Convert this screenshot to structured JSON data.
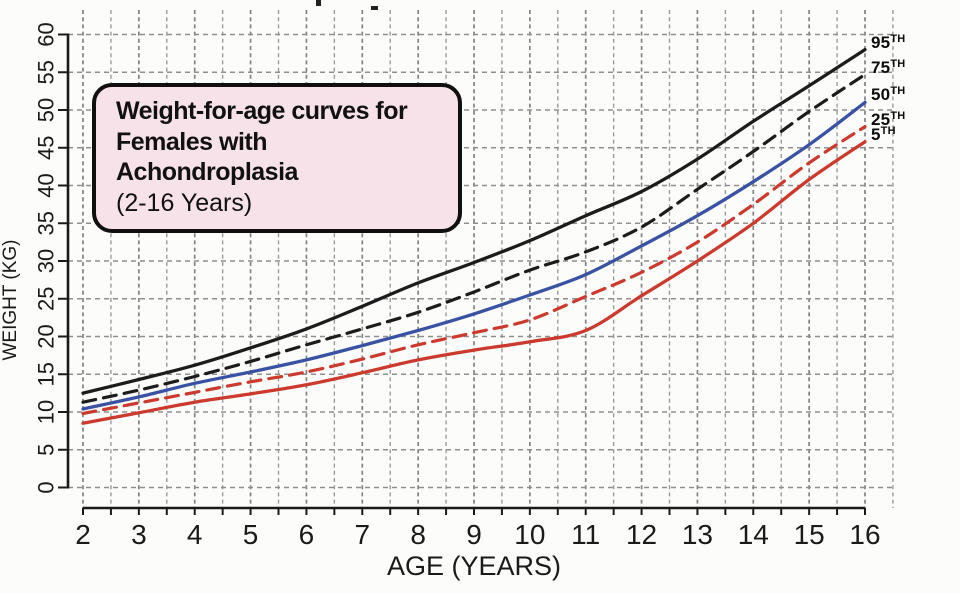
{
  "title_box": {
    "line1": "Weight-for-age curves for",
    "line2": "Females with Achondroplasia",
    "line3": "(2-16 Years)",
    "background": "#f8e2ea",
    "border_color": "#101010"
  },
  "chart_data": {
    "type": "line",
    "title": "Weight-for-age curves for Females with Achondroplasia (2-16 Years)",
    "xlabel": "AGE (YEARS)",
    "ylabel": "WEIGHT (KG)",
    "xlim": [
      2,
      16
    ],
    "ylim": [
      0,
      60
    ],
    "x_ticks": [
      2,
      3,
      4,
      5,
      6,
      7,
      8,
      9,
      10,
      11,
      12,
      13,
      14,
      15,
      16
    ],
    "y_ticks": [
      0,
      5,
      10,
      15,
      20,
      25,
      30,
      35,
      40,
      45,
      50,
      55,
      60
    ],
    "grid": {
      "on": true,
      "x_step": 0.5,
      "y_step": 5,
      "style": "dashed",
      "color": "#9b9b9b"
    },
    "legend_position": "curve-end-labels-right",
    "x": [
      2,
      3,
      4,
      5,
      6,
      7,
      8,
      9,
      10,
      11,
      12,
      13,
      14,
      15,
      16
    ],
    "series": [
      {
        "name": "95th percentile",
        "label": "95",
        "suffix": "TH",
        "color": "#1c1c1c",
        "dash": "solid",
        "values": [
          12.5,
          14.3,
          16.2,
          18.5,
          21.0,
          24.0,
          27.1,
          29.8,
          32.7,
          36.0,
          39.2,
          43.5,
          48.5,
          53.2,
          58.0
        ]
      },
      {
        "name": "75th percentile",
        "label": "75",
        "suffix": "TH",
        "color": "#1c1c1c",
        "dash": "dashed",
        "values": [
          11.3,
          12.9,
          14.7,
          16.7,
          18.9,
          21.0,
          23.2,
          25.9,
          28.8,
          31.2,
          34.5,
          39.5,
          44.5,
          49.8,
          54.7
        ]
      },
      {
        "name": "50th percentile",
        "label": "50",
        "suffix": "TH",
        "color": "#3a52a4",
        "dash": "solid",
        "values": [
          10.4,
          12.0,
          13.8,
          15.3,
          16.9,
          18.8,
          20.8,
          23.0,
          25.5,
          28.2,
          32.0,
          36.0,
          40.5,
          45.4,
          51.0
        ]
      },
      {
        "name": "25th percentile",
        "label": "25",
        "suffix": "TH",
        "color": "#cc3a2e",
        "dash": "dashed",
        "values": [
          9.8,
          11.2,
          12.6,
          14.0,
          15.3,
          17.0,
          18.9,
          20.5,
          22.2,
          25.3,
          28.5,
          32.5,
          37.5,
          43.0,
          47.8
        ]
      },
      {
        "name": "5th percentile",
        "label": "5",
        "suffix": "TH",
        "color": "#cc3a2e",
        "dash": "solid",
        "values": [
          8.5,
          9.9,
          11.3,
          12.4,
          13.6,
          15.2,
          16.9,
          18.2,
          19.3,
          20.8,
          25.4,
          30.0,
          35.0,
          40.8,
          45.8
        ]
      }
    ]
  }
}
